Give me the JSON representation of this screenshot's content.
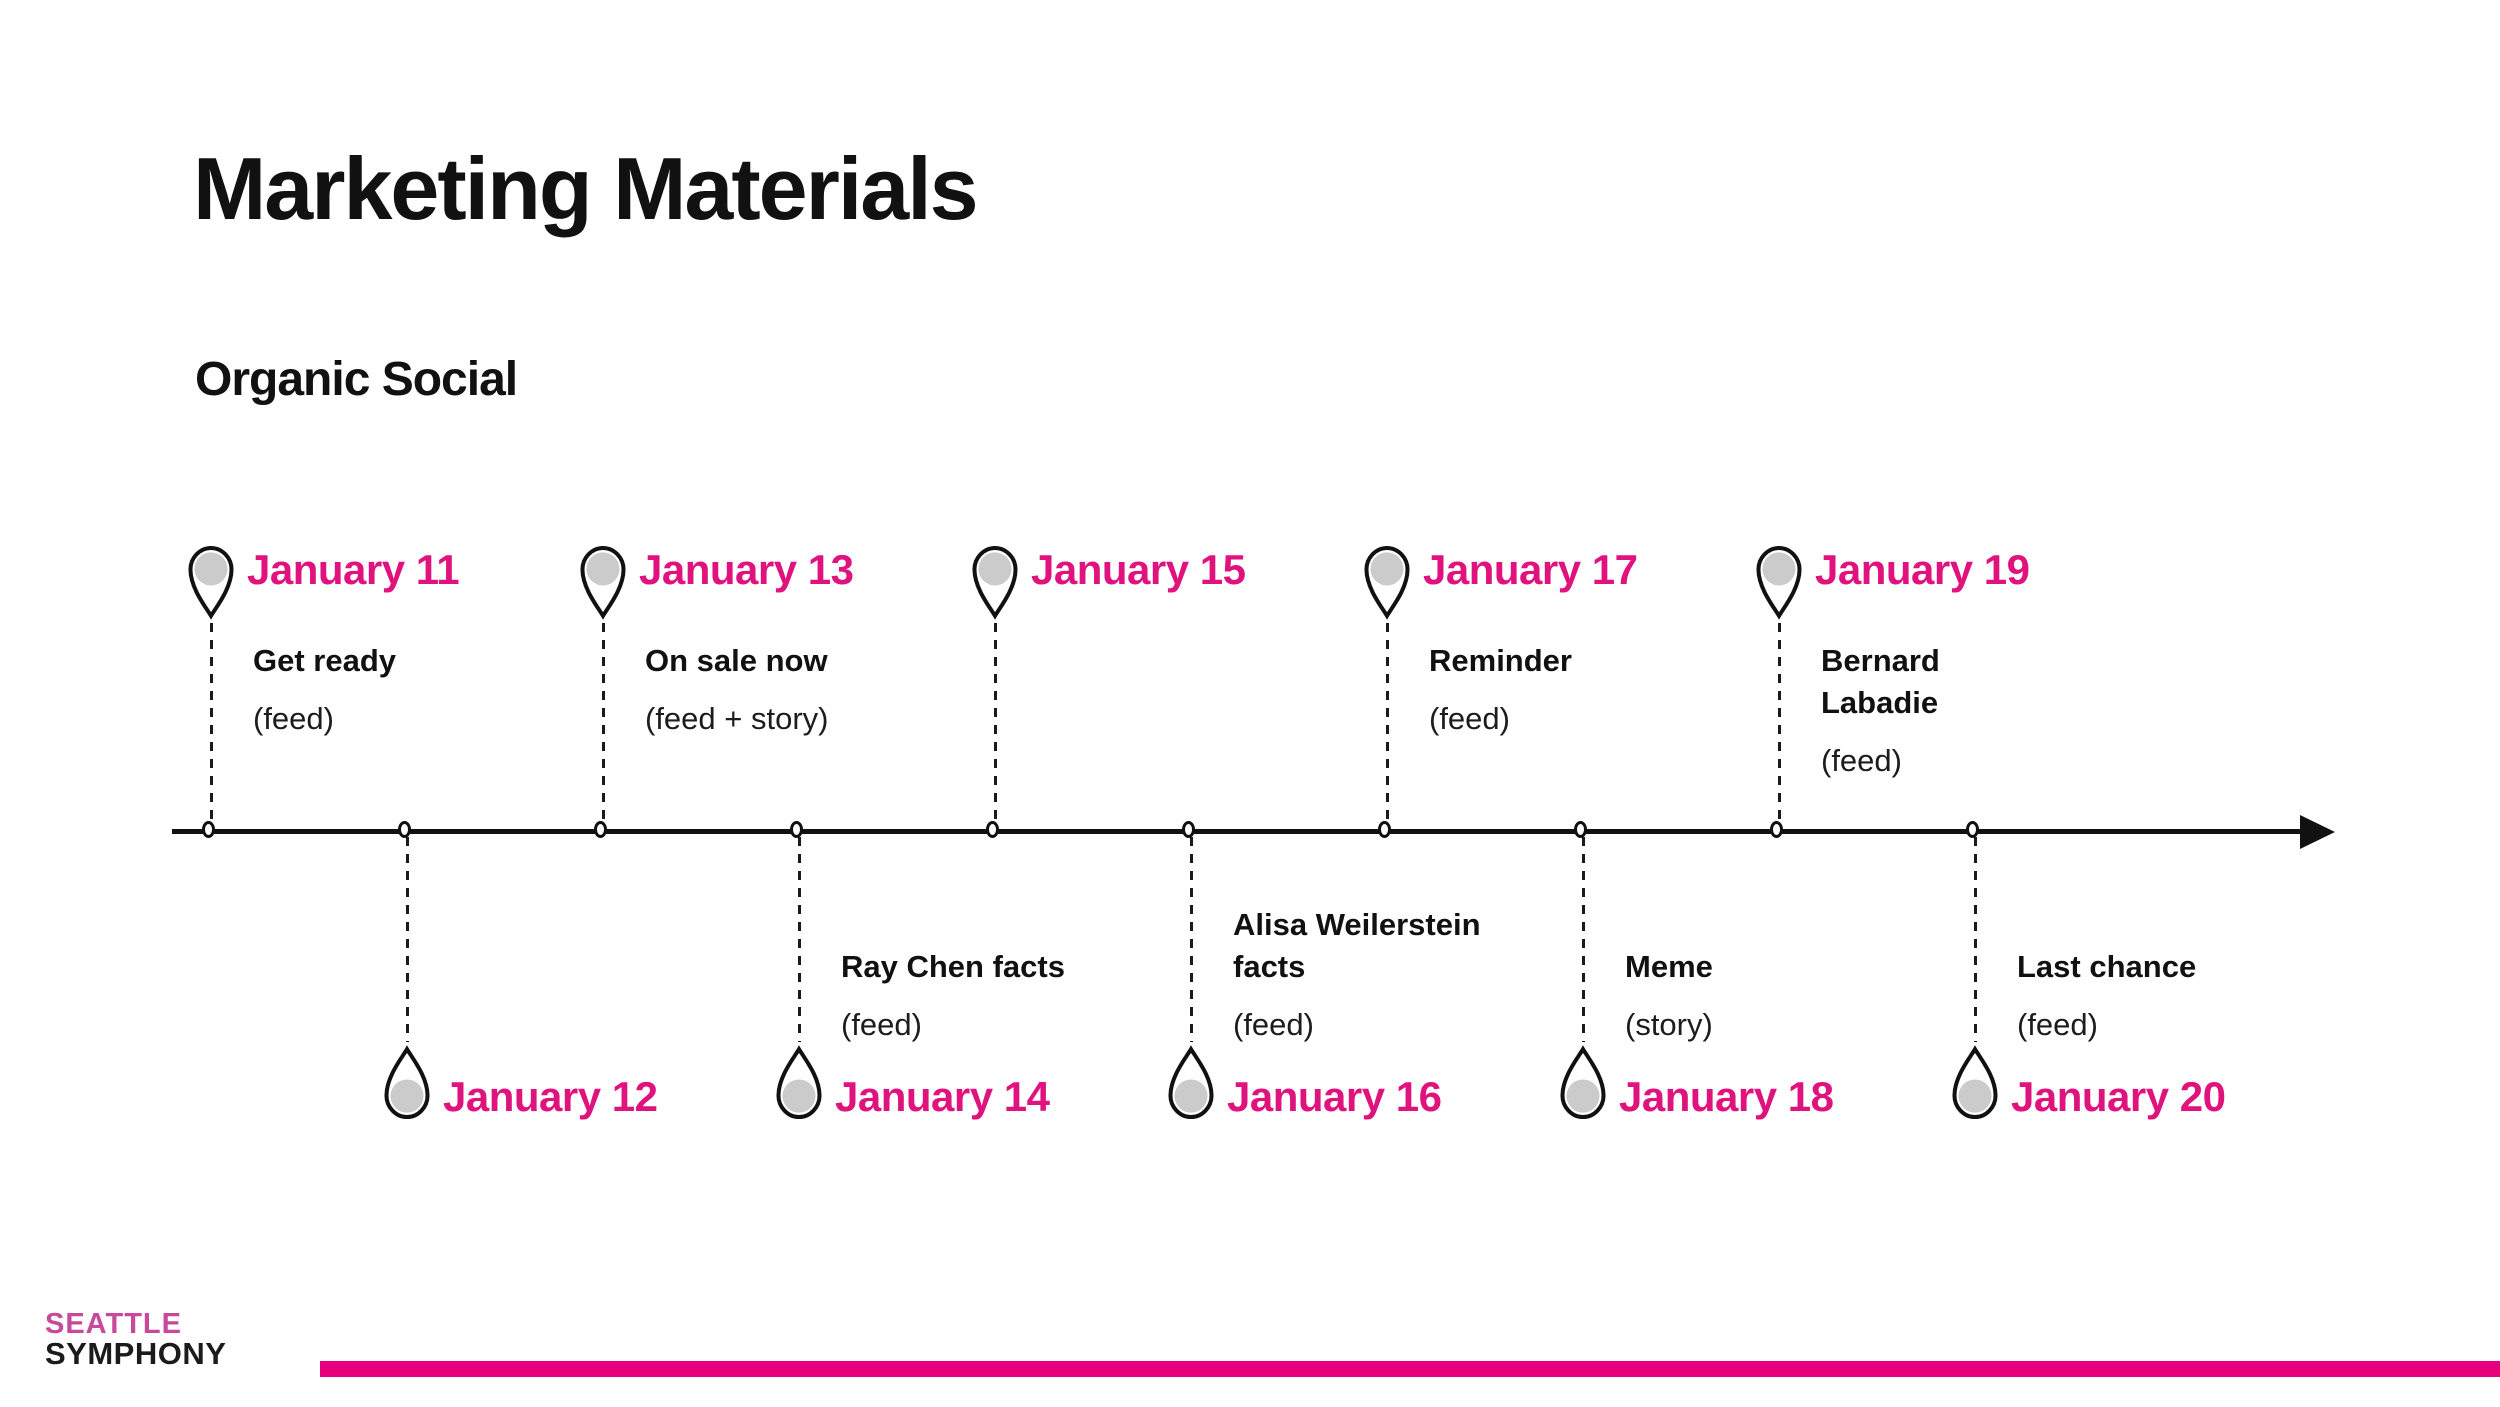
{
  "slide": {
    "title": "Marketing Materials",
    "subtitle": "Organic Social"
  },
  "timeline": {
    "events": [
      {
        "date": "January 11",
        "side": "top",
        "title": "Get ready",
        "format": "(feed)"
      },
      {
        "date": "January 12",
        "side": "bottom",
        "title": "",
        "format": ""
      },
      {
        "date": "January 13",
        "side": "top",
        "title": "On sale now",
        "format": "(feed + story)"
      },
      {
        "date": "January 14",
        "side": "bottom",
        "title": "Ray Chen facts",
        "format": "(feed)"
      },
      {
        "date": "January 15",
        "side": "top",
        "title": "",
        "format": ""
      },
      {
        "date": "January 16",
        "side": "bottom",
        "title": "Alisa Weilerstein\nfacts",
        "format": "(feed)"
      },
      {
        "date": "January 17",
        "side": "top",
        "title": "Reminder",
        "format": "(feed)"
      },
      {
        "date": "January 18",
        "side": "bottom",
        "title": "Meme",
        "format": "(story)"
      },
      {
        "date": "January 19",
        "side": "top",
        "title": "Bernard\nLabadie",
        "format": "(feed)"
      },
      {
        "date": "January 20",
        "side": "bottom",
        "title": "Last chance",
        "format": "(feed)"
      }
    ]
  },
  "footer": {
    "logo_line1": "SEATTLE",
    "logo_line2": "SYMPHONY"
  },
  "colors": {
    "accent_magenta": "#e0127d",
    "footer_bar": "#e6007e",
    "logo_pink": "#c8489b",
    "pin_gray": "#cbcbcb",
    "ink": "#111111"
  }
}
